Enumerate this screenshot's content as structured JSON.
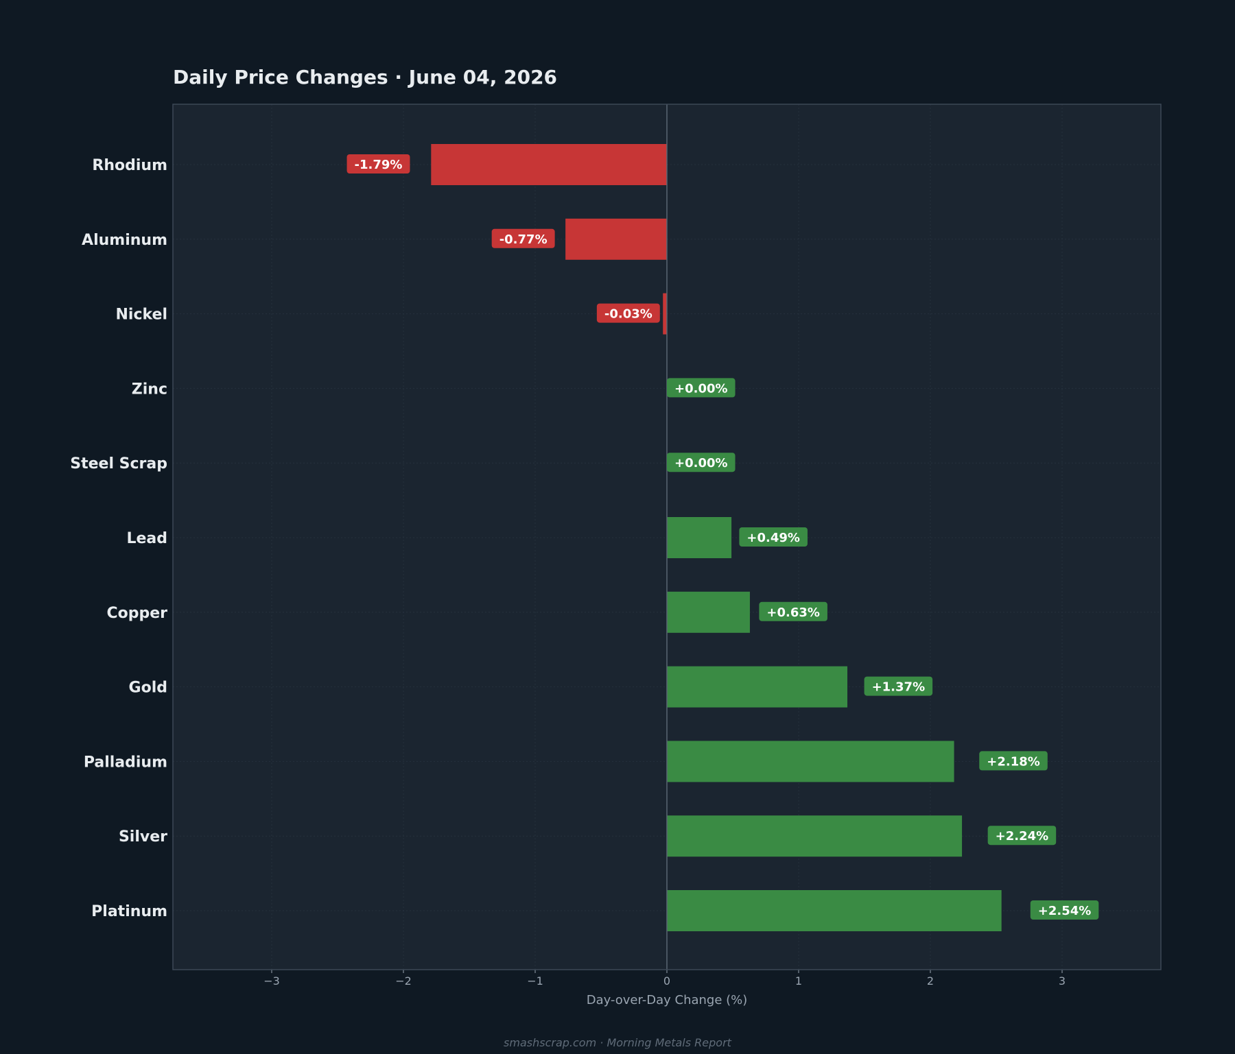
{
  "chart_data": {
    "type": "bar",
    "orientation": "horizontal",
    "title": "Daily Price Changes  ·  June 04, 2026",
    "xlabel": "Day-over-Day Change (%)",
    "ylabel": "",
    "xlim": [
      -3.75,
      3.75
    ],
    "x_ticks": [
      -3,
      -2,
      -1,
      0,
      1,
      2,
      3
    ],
    "x_tick_labels": [
      "−3",
      "−2",
      "−1",
      "0",
      "1",
      "2",
      "3"
    ],
    "grid": true,
    "categories": [
      "Rhodium",
      "Aluminum",
      "Nickel",
      "Zinc",
      "Steel Scrap",
      "Lead",
      "Copper",
      "Gold",
      "Palladium",
      "Silver",
      "Platinum"
    ],
    "values": [
      -1.79,
      -0.77,
      -0.03,
      0.0,
      0.0,
      0.49,
      0.63,
      1.37,
      2.18,
      2.24,
      2.54
    ],
    "value_labels": [
      "-1.79%",
      "-0.77%",
      "-0.03%",
      "+0.00%",
      "+0.00%",
      "+0.49%",
      "+0.63%",
      "+1.37%",
      "+2.18%",
      "+2.24%",
      "+2.54%"
    ]
  },
  "footer": "smashscrap.com  ·  Morning Metals Report",
  "colors": {
    "page_background": "#0f1923",
    "plot_background": "#1b2530",
    "frame": "#3c4856",
    "grid": "#26313d",
    "zero_line": "#5a6673",
    "negative": "#c73636",
    "positive": "#3a8b44",
    "text": "#e8ecef",
    "muted_text": "#9aa5b1",
    "footer_text": "#5f6b78"
  }
}
